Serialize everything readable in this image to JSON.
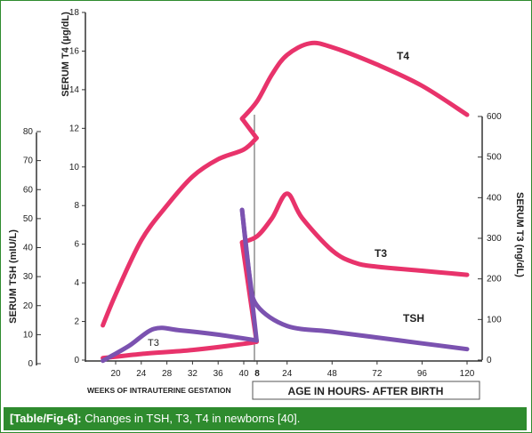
{
  "caption": {
    "label": "[Table/Fig-6]:",
    "text": "Changes in TSH, T3, T4 in newborns [40]."
  },
  "chart_data": {
    "type": "line",
    "axes": {
      "t4": {
        "label": "SERUM T4 (µg/dL)",
        "min": 0,
        "max": 18,
        "ticks": [
          0,
          2,
          4,
          6,
          8,
          10,
          12,
          14,
          16,
          18
        ]
      },
      "tsh": {
        "label": "SERUM TSH (mIU/L)",
        "min": 0,
        "max": 80,
        "ticks": [
          0,
          10,
          20,
          30,
          40,
          50,
          60,
          70,
          80
        ]
      },
      "t3": {
        "label": "SERUM T3 (ng/dL)",
        "min": 0,
        "max": 600,
        "ticks": [
          0,
          100,
          200,
          300,
          400,
          500,
          600
        ]
      },
      "x_fetal": {
        "label": "WEEKS OF INTRAUTERINE GESTATION",
        "ticks": [
          20,
          24,
          28,
          32,
          36,
          40
        ]
      },
      "x_neonatal": {
        "label": "AGE IN HOURS- AFTER BIRTH",
        "ticks": [
          8,
          24,
          48,
          72,
          96,
          120
        ]
      }
    },
    "series": [
      {
        "name": "T4",
        "axis": "t4",
        "color": "#e8336b",
        "fetal": [
          [
            18,
            1.8
          ],
          [
            20,
            3.4
          ],
          [
            24,
            6.2
          ],
          [
            28,
            8.0
          ],
          [
            32,
            9.5
          ],
          [
            36,
            10.4
          ],
          [
            40,
            10.9
          ],
          [
            42,
            11.5
          ]
        ],
        "neonatal": [
          [
            0,
            12.5
          ],
          [
            8,
            13.4
          ],
          [
            16,
            14.8
          ],
          [
            24,
            15.8
          ],
          [
            36,
            16.4
          ],
          [
            48,
            16.2
          ],
          [
            72,
            15.3
          ],
          [
            96,
            14.2
          ],
          [
            120,
            12.7
          ]
        ]
      },
      {
        "name": "T3",
        "axis": "t3",
        "color": "#e8336b",
        "fetal": [
          [
            18,
            5
          ],
          [
            24,
            15
          ],
          [
            32,
            25
          ],
          [
            40,
            40
          ],
          [
            42,
            45
          ]
        ],
        "neonatal": [
          [
            0,
            290
          ],
          [
            8,
            305
          ],
          [
            16,
            350
          ],
          [
            24,
            410
          ],
          [
            32,
            350
          ],
          [
            48,
            270
          ],
          [
            60,
            240
          ],
          [
            72,
            230
          ],
          [
            96,
            220
          ],
          [
            120,
            210
          ]
        ]
      },
      {
        "name": "TSH",
        "axis": "tsh",
        "color": "#7b52b0",
        "fetal": [
          [
            18,
            1
          ],
          [
            22,
            6
          ],
          [
            26,
            12
          ],
          [
            30,
            11.5
          ],
          [
            36,
            10
          ],
          [
            42,
            8
          ]
        ],
        "neonatal": [
          [
            0,
            53
          ],
          [
            4,
            30
          ],
          [
            8,
            20
          ],
          [
            24,
            13
          ],
          [
            48,
            11
          ],
          [
            72,
            9
          ],
          [
            96,
            7
          ],
          [
            120,
            5
          ]
        ]
      }
    ]
  }
}
